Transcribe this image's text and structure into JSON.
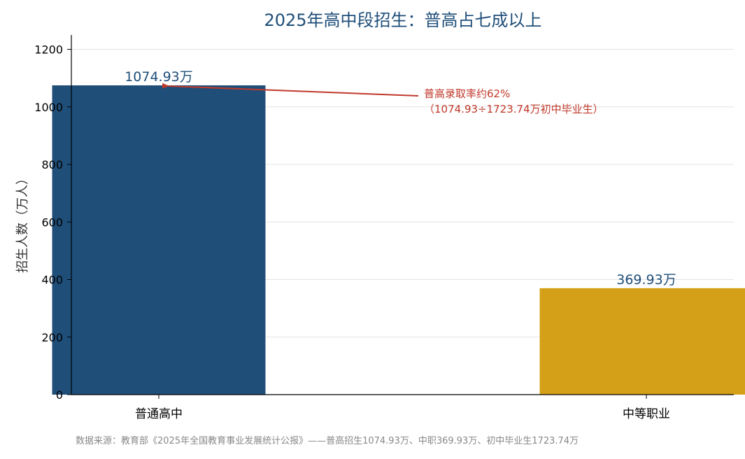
{
  "chart_data": {
    "type": "bar",
    "title": "2025年高中段招生：普高占七成以上",
    "ylabel": "招生人数（万人）",
    "xlabel": "",
    "categories": [
      "普通高中",
      "中等职业"
    ],
    "values": [
      1074.93,
      369.93
    ],
    "data_labels": [
      "1074.93万",
      "369.93万"
    ],
    "colors": [
      "#1f4e79",
      "#d4a017"
    ],
    "ylim": [
      0,
      1250
    ],
    "yticks": [
      0,
      200,
      400,
      600,
      800,
      1000,
      1200
    ],
    "grid": true,
    "annotation": {
      "lines": [
        "普高录取率约62%",
        "（1074.93÷1723.74万初中毕业生）"
      ],
      "target_category_index": 0,
      "color": "#c0392b"
    },
    "source": "数据来源：教育部《2025年全国教育事业发展统计公报》——普高招生1074.93万、中职369.93万、初中毕业生1723.74万"
  }
}
